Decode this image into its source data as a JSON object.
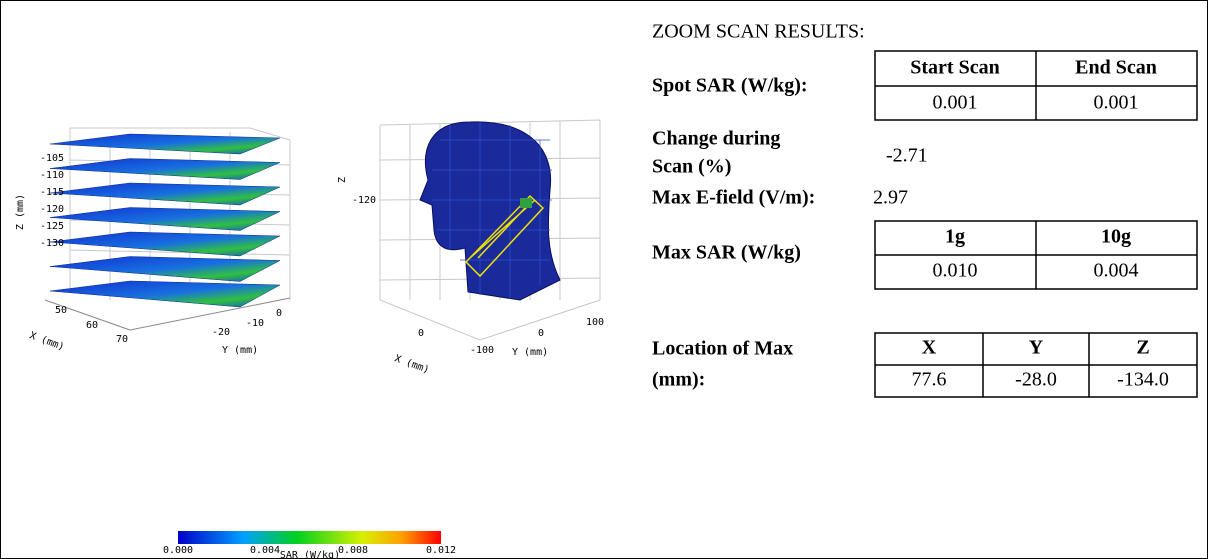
{
  "results": {
    "title": "ZOOM SCAN RESULTS:",
    "spot_sar": {
      "label": "Spot SAR (W/kg):",
      "headers": [
        "Start Scan",
        "End Scan"
      ],
      "values": [
        "0.001",
        "0.001"
      ]
    },
    "change": {
      "label_lines": [
        "Change during",
        "Scan (%)"
      ],
      "value": "-2.71"
    },
    "max_efield": {
      "label": "Max E-field (V/m):",
      "value": "2.97"
    },
    "max_sar": {
      "label": "Max SAR (W/kg)",
      "headers": [
        "1g",
        "10g"
      ],
      "values": [
        "0.010",
        "0.004"
      ]
    },
    "location": {
      "label_lines": [
        "Location of Max",
        "(mm):"
      ],
      "headers": [
        "X",
        "Y",
        "Z"
      ],
      "values": [
        "77.6",
        "-28.0",
        "-134.0"
      ]
    }
  },
  "plot_slices": {
    "z_label": "Z (mm)",
    "z_ticks": [
      "-105",
      "-110",
      "-115",
      "-120",
      "-125",
      "-130"
    ],
    "x_label": "X (mm)",
    "x_ticks": [
      "50",
      "60",
      "70"
    ],
    "y_label": "Y (mm)",
    "y_ticks": [
      "-20",
      "-10",
      "0"
    ]
  },
  "plot_head": {
    "z_label": "Z",
    "z_ticks": [
      "-120"
    ],
    "x_label": "X (mm)",
    "x_ticks": [
      "0"
    ],
    "y_label": "Y (mm)",
    "y_ticks": [
      "-100",
      "0",
      "100"
    ]
  },
  "colorbar": {
    "ticks": [
      "0.000",
      "0.004",
      "0.008",
      "0.012"
    ],
    "label": "SAR (W/kg)"
  }
}
